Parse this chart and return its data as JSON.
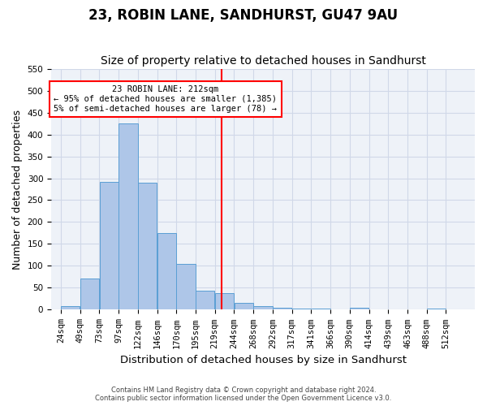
{
  "title": "23, ROBIN LANE, SANDHURST, GU47 9AU",
  "subtitle": "Size of property relative to detached houses in Sandhurst",
  "xlabel": "Distribution of detached houses by size in Sandhurst",
  "ylabel": "Number of detached properties",
  "bar_labels": [
    "24sqm",
    "49sqm",
    "73sqm",
    "97sqm",
    "122sqm",
    "146sqm",
    "170sqm",
    "195sqm",
    "219sqm",
    "244sqm",
    "268sqm",
    "292sqm",
    "317sqm",
    "341sqm",
    "366sqm",
    "390sqm",
    "414sqm",
    "439sqm",
    "463sqm",
    "488sqm",
    "512sqm"
  ],
  "bar_values": [
    8,
    71,
    292,
    425,
    290,
    175,
    105,
    44,
    38,
    16,
    8,
    5,
    3,
    2,
    0,
    4,
    0,
    0,
    0,
    3,
    0
  ],
  "bar_color": "#aec6e8",
  "bar_edge_color": "#5a9fd4",
  "vline_x": 212,
  "vline_color": "red",
  "annotation_line1": "23 ROBIN LANE: 212sqm",
  "annotation_line2": "← 95% of detached houses are smaller (1,385)",
  "annotation_line3": "5% of semi-detached houses are larger (78) →",
  "ylim": [
    0,
    550
  ],
  "yticks": [
    0,
    50,
    100,
    150,
    200,
    250,
    300,
    350,
    400,
    450,
    500,
    550
  ],
  "grid_color": "#d0d8e8",
  "bg_color": "#eef2f8",
  "footer_line1": "Contains HM Land Registry data © Crown copyright and database right 2024.",
  "footer_line2": "Contains public sector information licensed under the Open Government Licence v3.0.",
  "title_fontsize": 12,
  "subtitle_fontsize": 10,
  "axis_label_fontsize": 9,
  "tick_fontsize": 7.5
}
